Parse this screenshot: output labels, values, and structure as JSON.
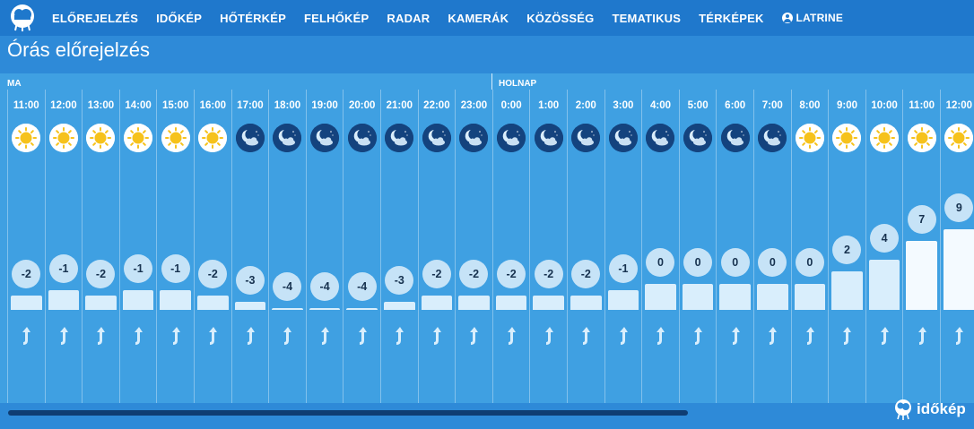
{
  "nav": {
    "items": [
      "ELŐREJELZÉS",
      "IDŐKÉP",
      "HŐTÉRKÉP",
      "FELHŐKÉP",
      "RADAR",
      "KAMERÁK",
      "KÖZÖSSÉG",
      "TEMATIKUS",
      "TÉRKÉPEK"
    ],
    "user_label": "LATRINE"
  },
  "page_title": "Órás előrejelzés",
  "days": {
    "today": "MA",
    "tomorrow": "HOLNAP"
  },
  "hours": [
    {
      "time": "11:00",
      "icon": "sun-icon",
      "temp": "-2",
      "temp_value": -2
    },
    {
      "time": "12:00",
      "icon": "sun-icon",
      "temp": "-1",
      "temp_value": -1
    },
    {
      "time": "13:00",
      "icon": "sun-icon",
      "temp": "-2",
      "temp_value": -2
    },
    {
      "time": "14:00",
      "icon": "sun-icon",
      "temp": "-1",
      "temp_value": -1
    },
    {
      "time": "15:00",
      "icon": "sun-icon",
      "temp": "-1",
      "temp_value": -1
    },
    {
      "time": "16:00",
      "icon": "sun-icon",
      "temp": "-2",
      "temp_value": -2
    },
    {
      "time": "17:00",
      "icon": "moon-cloud-icon",
      "temp": "-3",
      "temp_value": -3
    },
    {
      "time": "18:00",
      "icon": "moon-cloud-icon",
      "temp": "-4",
      "temp_value": -4
    },
    {
      "time": "19:00",
      "icon": "moon-cloud-icon",
      "temp": "-4",
      "temp_value": -4
    },
    {
      "time": "20:00",
      "icon": "moon-cloud-icon",
      "temp": "-4",
      "temp_value": -4
    },
    {
      "time": "21:00",
      "icon": "moon-cloud-icon",
      "temp": "-3",
      "temp_value": -3
    },
    {
      "time": "22:00",
      "icon": "moon-cloud-icon",
      "temp": "-2",
      "temp_value": -2
    },
    {
      "time": "23:00",
      "icon": "moon-cloud-icon",
      "temp": "-2",
      "temp_value": -2
    },
    {
      "time": "0:00",
      "icon": "moon-cloud-icon",
      "temp": "-2",
      "temp_value": -2
    },
    {
      "time": "1:00",
      "icon": "moon-cloud-icon",
      "temp": "-2",
      "temp_value": -2
    },
    {
      "time": "2:00",
      "icon": "moon-cloud-icon",
      "temp": "-2",
      "temp_value": -2
    },
    {
      "time": "3:00",
      "icon": "moon-cloud-icon",
      "temp": "-1",
      "temp_value": -1
    },
    {
      "time": "4:00",
      "icon": "moon-cloud-icon",
      "temp": "0",
      "temp_value": 0
    },
    {
      "time": "5:00",
      "icon": "moon-cloud-icon",
      "temp": "0",
      "temp_value": 0
    },
    {
      "time": "6:00",
      "icon": "moon-cloud-icon",
      "temp": "0",
      "temp_value": 0
    },
    {
      "time": "7:00",
      "icon": "moon-cloud-icon",
      "temp": "0",
      "temp_value": 0
    },
    {
      "time": "8:00",
      "icon": "sun-icon",
      "temp": "0",
      "temp_value": 0
    },
    {
      "time": "9:00",
      "icon": "sun-icon",
      "temp": "2",
      "temp_value": 2
    },
    {
      "time": "10:00",
      "icon": "sun-icon",
      "temp": "4",
      "temp_value": 4
    },
    {
      "time": "11:00",
      "icon": "sun-icon",
      "temp": "7",
      "temp_value": 7
    },
    {
      "time": "12:00",
      "icon": "sun-icon",
      "temp": "9",
      "temp_value": 9
    }
  ],
  "brand": "időkép",
  "colors": {
    "nav_bg": "#1f78cc",
    "panel_bg": "#3fa0e2",
    "sun": "#f6c21c",
    "moon_bg": "#14437e"
  }
}
